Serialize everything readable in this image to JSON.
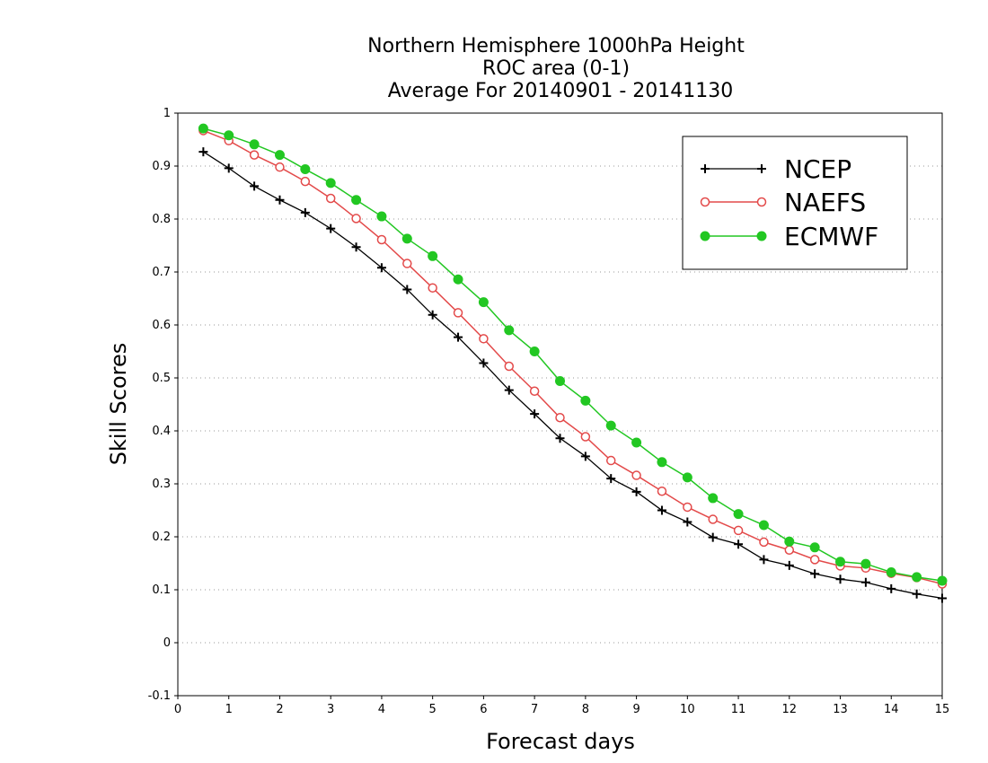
{
  "chart_data": {
    "type": "line",
    "title": {
      "lines": [
        "Northern Hemisphere 1000hPa Height",
        "ROC area (0-1)",
        "Average For 20140901 - 20141130"
      ]
    },
    "xlabel": "Forecast days",
    "ylabel": "Skill Scores",
    "xlim": [
      0,
      15
    ],
    "ylim": [
      -0.1,
      1
    ],
    "xticks": [
      0,
      1,
      2,
      3,
      4,
      5,
      6,
      7,
      8,
      9,
      10,
      11,
      12,
      13,
      14,
      15
    ],
    "xtick_labels": [
      "0",
      "1",
      "2",
      "3",
      "4",
      "5",
      "6",
      "7",
      "8",
      "9",
      "10",
      "11",
      "12",
      "13",
      "14",
      "15"
    ],
    "yticks": [
      -0.1,
      0,
      0.1,
      0.2,
      0.3,
      0.4,
      0.5,
      0.6,
      0.7,
      0.8,
      0.9,
      1
    ],
    "ytick_labels": [
      "-0.1",
      "0",
      "0.1",
      "0.2",
      "0.3",
      "0.4",
      "0.5",
      "0.6",
      "0.7",
      "0.8",
      "0.9",
      "1"
    ],
    "grid": "horizontal dotted",
    "legend_position": "top-right",
    "x": [
      0.5,
      1.0,
      1.5,
      2.0,
      2.5,
      3.0,
      3.5,
      4.0,
      4.5,
      5.0,
      5.5,
      6.0,
      6.5,
      7.0,
      7.5,
      8.0,
      8.5,
      9.0,
      9.5,
      10.0,
      10.5,
      11.0,
      11.5,
      12.0,
      12.5,
      13.0,
      13.5,
      14.0,
      14.5,
      15.0
    ],
    "series": [
      {
        "name": "NCEP",
        "color": "#000000",
        "marker": "plus",
        "values": [
          0.927,
          0.896,
          0.862,
          0.836,
          0.812,
          0.782,
          0.747,
          0.708,
          0.667,
          0.619,
          0.577,
          0.528,
          0.477,
          0.432,
          0.386,
          0.352,
          0.31,
          0.285,
          0.25,
          0.228,
          0.199,
          0.186,
          0.157,
          0.146,
          0.13,
          0.12,
          0.114,
          0.102,
          0.092,
          0.084
        ]
      },
      {
        "name": "NAEFS",
        "color": "#e34a4a",
        "marker": "open-circle",
        "values": [
          0.967,
          0.948,
          0.921,
          0.898,
          0.871,
          0.839,
          0.801,
          0.761,
          0.716,
          0.67,
          0.623,
          0.574,
          0.522,
          0.475,
          0.425,
          0.389,
          0.344,
          0.316,
          0.286,
          0.256,
          0.233,
          0.212,
          0.19,
          0.175,
          0.157,
          0.145,
          0.141,
          0.131,
          0.123,
          0.111
        ]
      },
      {
        "name": "ECMWF",
        "color": "#22c722",
        "marker": "filled-circle",
        "values": [
          0.971,
          0.958,
          0.941,
          0.921,
          0.894,
          0.868,
          0.836,
          0.805,
          0.763,
          0.73,
          0.686,
          0.643,
          0.59,
          0.55,
          0.494,
          0.457,
          0.41,
          0.378,
          0.341,
          0.312,
          0.273,
          0.243,
          0.222,
          0.191,
          0.18,
          0.153,
          0.149,
          0.133,
          0.124,
          0.117
        ]
      }
    ]
  }
}
